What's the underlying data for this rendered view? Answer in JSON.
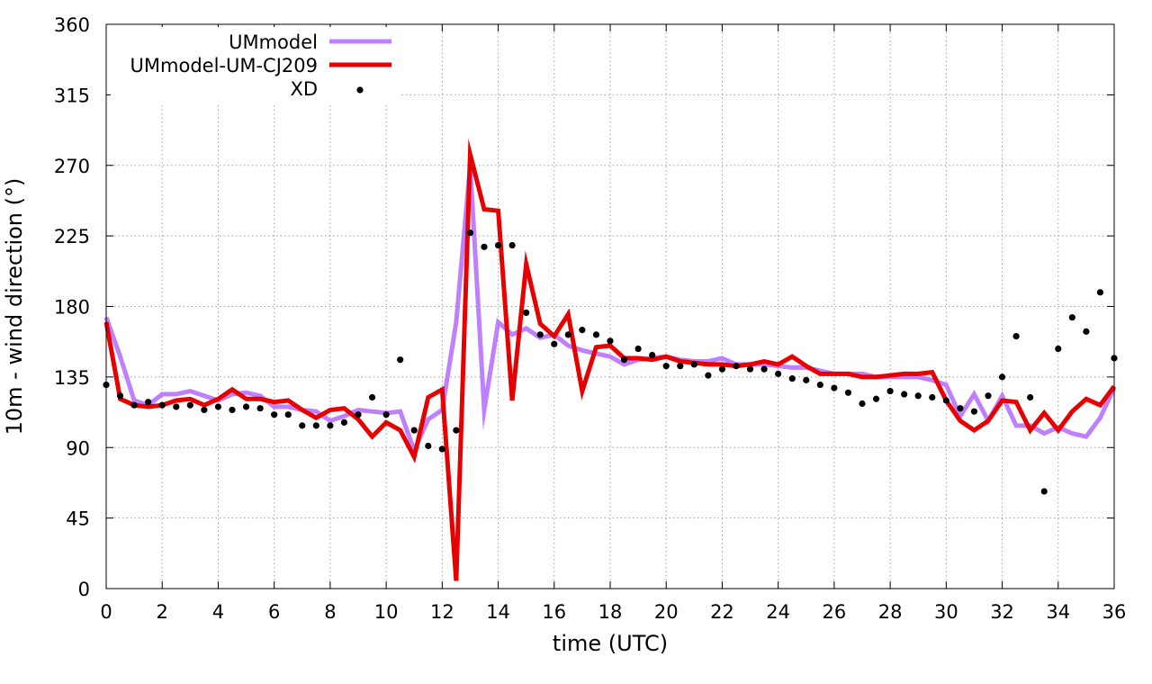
{
  "chart_data": {
    "type": "line",
    "title": "",
    "xlabel": "time (UTC)",
    "ylabel": "10m - wind direction (°)",
    "xlim": [
      0,
      36
    ],
    "ylim": [
      0,
      360
    ],
    "xticks": [
      0,
      2,
      4,
      6,
      8,
      10,
      12,
      14,
      16,
      18,
      20,
      22,
      24,
      26,
      28,
      30,
      32,
      34,
      36
    ],
    "yticks": [
      0,
      45,
      90,
      135,
      180,
      225,
      270,
      315,
      360
    ],
    "grid": true,
    "legend_position": "top-left",
    "series": [
      {
        "name": "UMmodel",
        "style": "line",
        "color": "#bf80ff",
        "x": [
          0,
          0.5,
          1,
          1.5,
          2,
          2.5,
          3,
          3.5,
          4,
          4.5,
          5,
          5.5,
          6,
          6.5,
          7,
          7.5,
          8,
          8.5,
          9,
          9.5,
          10,
          10.5,
          11,
          11.5,
          12,
          12.5,
          13,
          13.5,
          14,
          14.5,
          15,
          15.5,
          16,
          16.5,
          17,
          17.5,
          18,
          18.5,
          19,
          19.5,
          20,
          20.5,
          21,
          21.5,
          22,
          22.5,
          23,
          23.5,
          24,
          24.5,
          25,
          25.5,
          26,
          26.5,
          27,
          27.5,
          28,
          28.5,
          29,
          29.5,
          30,
          30.5,
          31,
          31.5,
          32,
          32.5,
          33,
          33.5,
          34,
          34.5,
          35,
          35.5,
          36
        ],
        "values": [
          173,
          148,
          120,
          117,
          124,
          124,
          126,
          123,
          120,
          124,
          125,
          123,
          116,
          116,
          114,
          113,
          107,
          110,
          114,
          113,
          112,
          113,
          88,
          108,
          114,
          170,
          270,
          114,
          170,
          162,
          166,
          160,
          162,
          155,
          152,
          150,
          148,
          143,
          146,
          147,
          148,
          146,
          145,
          145,
          147,
          143,
          143,
          143,
          142,
          141,
          141,
          139,
          137,
          137,
          137,
          135,
          135,
          135,
          135,
          133,
          130,
          110,
          124,
          107,
          123,
          104,
          104,
          99,
          103,
          99,
          97,
          109,
          128
        ]
      },
      {
        "name": "UMmodel-UM-CJ209",
        "style": "line",
        "color": "#e60000",
        "x": [
          0,
          0.5,
          1,
          1.5,
          2,
          2.5,
          3,
          3.5,
          4,
          4.5,
          5,
          5.5,
          6,
          6.5,
          7,
          7.5,
          8,
          8.5,
          9,
          9.5,
          10,
          10.5,
          11,
          11.5,
          12,
          12.5,
          13,
          13.5,
          14,
          14.5,
          15,
          15.5,
          16,
          16.5,
          17,
          17.5,
          18,
          18.5,
          19,
          19.5,
          20,
          20.5,
          21,
          21.5,
          22,
          22.5,
          23,
          23.5,
          24,
          24.5,
          25,
          25.5,
          26,
          26.5,
          27,
          27.5,
          28,
          28.5,
          29,
          29.5,
          30,
          30.5,
          31,
          31.5,
          32,
          32.5,
          33,
          33.5,
          34,
          34.5,
          35,
          35.5,
          36
        ],
        "values": [
          170,
          121,
          117,
          116,
          117,
          120,
          121,
          117,
          121,
          127,
          121,
          121,
          119,
          120,
          114,
          109,
          114,
          115,
          108,
          97,
          106,
          101,
          84,
          122,
          127,
          5,
          277,
          242,
          241,
          120,
          207,
          169,
          161,
          175,
          126,
          154,
          155,
          147,
          147,
          146,
          148,
          145,
          144,
          143,
          143,
          142,
          143,
          145,
          143,
          148,
          142,
          137,
          137,
          137,
          135,
          135,
          136,
          137,
          137,
          138,
          120,
          107,
          101,
          107,
          120,
          119,
          101,
          112,
          101,
          113,
          121,
          117,
          129
        ]
      },
      {
        "name": "XD",
        "style": "points",
        "color": "#000000",
        "x": [
          0,
          0.5,
          1,
          1.5,
          2,
          2.5,
          3,
          3.5,
          4,
          4.5,
          5,
          5.5,
          6,
          6.5,
          7,
          7.5,
          8,
          8.5,
          9,
          9.5,
          10,
          10.5,
          11,
          11.5,
          12,
          12.5,
          13,
          13.5,
          14,
          14.5,
          15,
          15.5,
          16,
          16.5,
          17,
          17.5,
          18,
          18.5,
          19,
          19.5,
          20,
          20.5,
          21,
          21.5,
          22,
          22.5,
          23,
          23.5,
          24,
          24.5,
          25,
          25.5,
          26,
          26.5,
          27,
          27.5,
          28,
          28.5,
          29,
          29.5,
          30,
          30.5,
          31,
          31.5,
          32,
          32.5,
          33,
          33.5,
          34,
          34.5,
          35,
          35.5,
          36
        ],
        "values": [
          130,
          123,
          117,
          119,
          117,
          116,
          117,
          114,
          116,
          114,
          116,
          115,
          111,
          111,
          104,
          104,
          104,
          106,
          111,
          122,
          111,
          146,
          101,
          91,
          89,
          101,
          227,
          218,
          219,
          219,
          176,
          162,
          156,
          162,
          165,
          162,
          158,
          146,
          153,
          149,
          142,
          142,
          143,
          136,
          140,
          142,
          140,
          140,
          137,
          134,
          133,
          130,
          128,
          125,
          118,
          121,
          126,
          124,
          123,
          122,
          120,
          115,
          113,
          123,
          135,
          161,
          122,
          62,
          153,
          173,
          164,
          189,
          147
        ]
      }
    ]
  }
}
